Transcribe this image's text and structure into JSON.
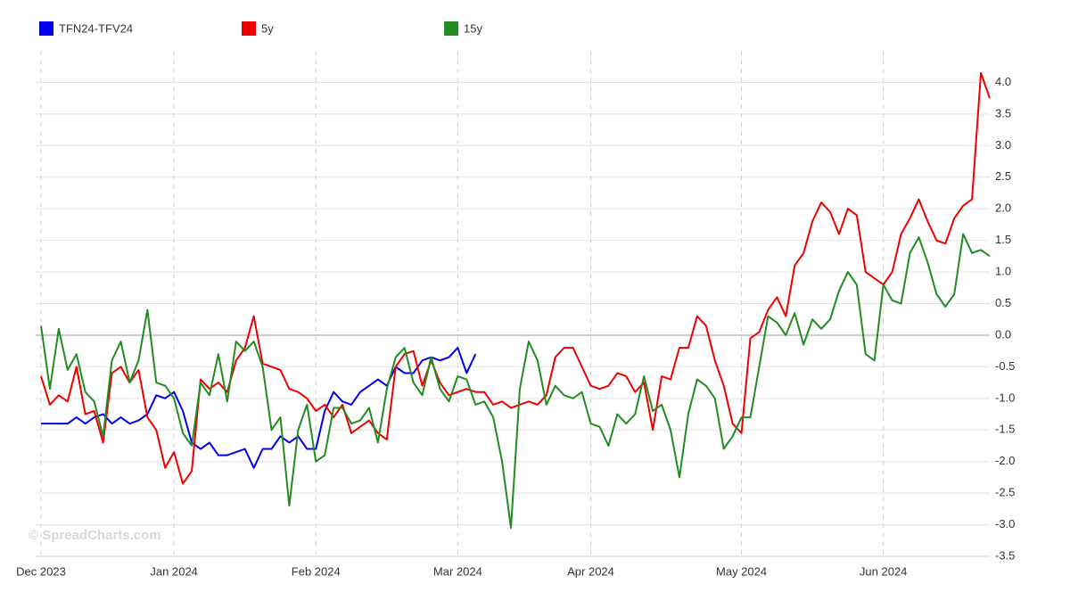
{
  "chart_data": {
    "type": "line",
    "watermark": "© SpreadCharts.com",
    "categories": [
      "Dec 2023",
      null,
      null,
      null,
      null,
      null,
      null,
      null,
      null,
      null,
      null,
      null,
      null,
      null,
      null,
      "Jan 2024",
      null,
      null,
      null,
      null,
      null,
      null,
      null,
      null,
      null,
      null,
      null,
      null,
      null,
      null,
      null,
      "Feb 2024",
      null,
      null,
      null,
      null,
      null,
      null,
      null,
      null,
      null,
      null,
      null,
      null,
      null,
      null,
      null,
      "Mar 2024",
      null,
      null,
      null,
      null,
      null,
      null,
      null,
      null,
      null,
      null,
      null,
      null,
      null,
      null,
      "Apr 2024",
      null,
      null,
      null,
      null,
      null,
      null,
      null,
      null,
      null,
      null,
      null,
      null,
      null,
      null,
      null,
      null,
      "May 2024",
      null,
      null,
      null,
      null,
      null,
      null,
      null,
      null,
      null,
      null,
      null,
      null,
      null,
      null,
      null,
      "Jun 2024",
      null,
      null,
      null,
      null,
      null,
      null,
      null,
      null,
      null,
      null,
      null,
      null
    ],
    "series": [
      {
        "name": "TFN24-TFV24",
        "color": "#0000ee",
        "values": [
          -1.4,
          -1.4,
          -1.4,
          -1.4,
          -1.3,
          -1.4,
          -1.3,
          -1.25,
          -1.4,
          -1.3,
          -1.4,
          -1.35,
          -1.25,
          -0.95,
          -1.0,
          -0.9,
          -1.2,
          -1.7,
          -1.8,
          -1.7,
          -1.9,
          -1.9,
          -1.85,
          -1.8,
          -2.1,
          -1.8,
          -1.8,
          -1.6,
          -1.7,
          -1.6,
          -1.8,
          -1.8,
          -1.2,
          -0.9,
          -1.05,
          -1.1,
          -0.9,
          -0.8,
          -0.7,
          -0.8,
          -0.5,
          -0.6,
          -0.6,
          -0.4,
          -0.35,
          -0.4,
          -0.35,
          -0.2,
          -0.6,
          -0.3,
          null,
          null,
          null,
          null,
          null,
          null,
          null,
          null,
          null,
          null,
          null,
          null,
          null,
          null,
          null,
          null,
          null,
          null,
          null,
          null,
          null,
          null,
          null,
          null,
          null,
          null,
          null,
          null,
          null,
          null,
          null,
          null,
          null,
          null,
          null,
          null,
          null,
          null,
          null,
          null,
          null,
          null,
          null,
          null,
          null,
          null,
          null,
          null,
          null,
          null,
          null,
          null,
          null,
          null,
          null,
          null,
          null,
          null
        ]
      },
      {
        "name": "5y",
        "color": "#ee0000",
        "values": [
          -0.65,
          -1.1,
          -0.95,
          -1.05,
          -0.5,
          -1.25,
          -1.2,
          -1.7,
          -0.6,
          -0.5,
          -0.75,
          -0.55,
          -1.3,
          -1.5,
          -2.1,
          -1.85,
          -2.35,
          -2.15,
          -0.7,
          -0.85,
          -0.75,
          -0.9,
          -0.4,
          -0.2,
          0.3,
          -0.45,
          -0.5,
          -0.55,
          -0.85,
          -0.9,
          -1.0,
          -1.2,
          -1.1,
          -1.3,
          -1.1,
          -1.55,
          -1.45,
          -1.35,
          -1.55,
          -1.65,
          -0.5,
          -0.3,
          -0.25,
          -0.8,
          -0.4,
          -0.75,
          -0.95,
          -0.9,
          -0.85,
          -0.9,
          -0.9,
          -1.1,
          -1.05,
          -1.15,
          -1.1,
          -1.05,
          -1.1,
          -0.95,
          -0.35,
          -0.2,
          -0.2,
          -0.5,
          -0.8,
          -0.85,
          -0.8,
          -0.6,
          -0.65,
          -0.9,
          -0.75,
          -1.5,
          -0.65,
          -0.7,
          -0.2,
          -0.2,
          0.3,
          0.15,
          -0.4,
          -0.8,
          -1.4,
          -1.55,
          -0.05,
          0.05,
          0.4,
          0.6,
          0.3,
          1.1,
          1.3,
          1.8,
          2.1,
          1.95,
          1.6,
          2.0,
          1.9,
          1.0,
          0.9,
          0.8,
          1.0,
          1.6,
          1.85,
          2.15,
          1.8,
          1.5,
          1.45,
          1.85,
          2.05,
          2.15,
          4.15,
          3.75
        ]
      },
      {
        "name": "15y",
        "color": "#228b22",
        "values": [
          0.15,
          -0.85,
          0.1,
          -0.55,
          -0.3,
          -0.9,
          -1.05,
          -1.6,
          -0.4,
          -0.1,
          -0.75,
          -0.4,
          0.4,
          -0.75,
          -0.8,
          -1.0,
          -1.55,
          -1.75,
          -0.75,
          -0.95,
          -0.3,
          -1.05,
          -0.1,
          -0.25,
          -0.1,
          -0.5,
          -1.5,
          -1.3,
          -2.7,
          -1.5,
          -1.1,
          -2.0,
          -1.9,
          -1.15,
          -1.15,
          -1.4,
          -1.35,
          -1.15,
          -1.7,
          -0.85,
          -0.35,
          -0.2,
          -0.75,
          -0.95,
          -0.35,
          -0.85,
          -1.05,
          -0.65,
          -0.7,
          -1.1,
          -1.05,
          -1.3,
          -2.0,
          -3.05,
          -0.85,
          -0.1,
          -0.4,
          -1.1,
          -0.8,
          -0.95,
          -1.0,
          -0.9,
          -1.4,
          -1.45,
          -1.75,
          -1.25,
          -1.4,
          -1.25,
          -0.65,
          -1.2,
          -1.1,
          -1.5,
          -2.25,
          -1.25,
          -0.7,
          -0.8,
          -1.0,
          -1.8,
          -1.6,
          -1.3,
          -1.3,
          -0.5,
          0.3,
          0.2,
          0.0,
          0.35,
          -0.15,
          0.25,
          0.1,
          0.25,
          0.7,
          1.0,
          0.8,
          -0.3,
          -0.4,
          0.8,
          0.55,
          0.5,
          1.3,
          1.55,
          1.15,
          0.65,
          0.45,
          0.65,
          1.6,
          1.3,
          1.35,
          1.25
        ]
      }
    ],
    "ylim": [
      -3.5,
      4.5
    ],
    "yticks": [
      -3.5,
      {
        "value": -3,
        "label": "-3.0"
      },
      -2.5,
      {
        "value": -2,
        "label": "-2.0"
      },
      -1.5,
      {
        "value": -1,
        "label": "-1.0"
      },
      -0.5,
      {
        "value": 0,
        "label": "0.0"
      },
      0.5,
      {
        "value": 1,
        "label": "1.0"
      },
      1.5,
      {
        "value": 2,
        "label": "2.0"
      },
      2.5,
      {
        "value": 3,
        "label": "3.0"
      },
      3.5,
      {
        "value": 4,
        "label": "4.0"
      }
    ],
    "grid": true,
    "legend": "top"
  }
}
